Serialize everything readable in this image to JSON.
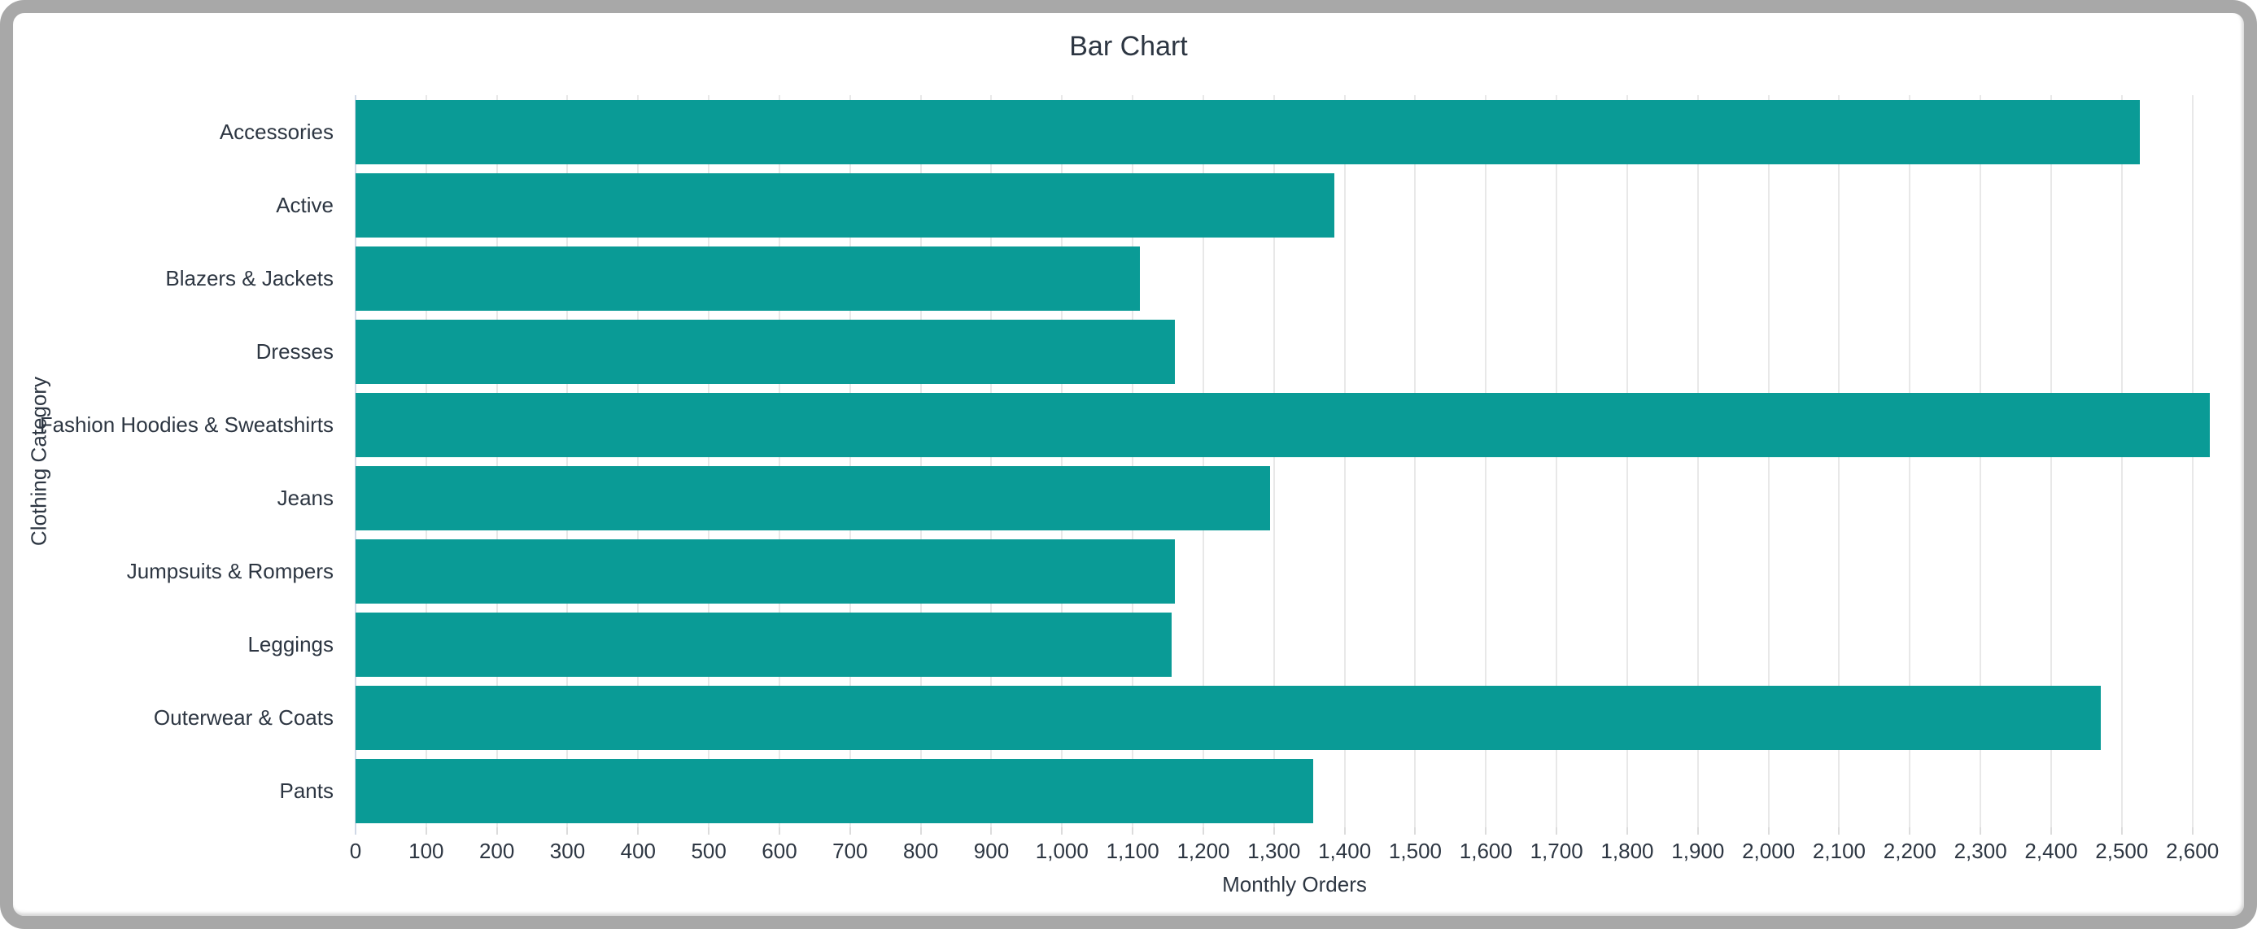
{
  "window": {
    "border_color": "#a8a8a8"
  },
  "chart_data": {
    "type": "bar",
    "orientation": "horizontal",
    "title": "Bar Chart",
    "xlabel": "Monthly Orders",
    "ylabel": "Clothing Category",
    "categories": [
      "Accessories",
      "Active",
      "Blazers & Jackets",
      "Dresses",
      "Fashion Hoodies & Sweatshirts",
      "Jeans",
      "Jumpsuits & Rompers",
      "Leggings",
      "Outerwear & Coats",
      "Pants"
    ],
    "values": [
      2525,
      1385,
      1110,
      1160,
      2625,
      1295,
      1160,
      1155,
      2470,
      1355
    ],
    "xlim": [
      0,
      2658
    ],
    "xtick_labels": [
      "0",
      "100",
      "200",
      "300",
      "400",
      "500",
      "600",
      "700",
      "800",
      "900",
      "1,000",
      "1,100",
      "1,200",
      "1,300",
      "1,400",
      "1,500",
      "1,600",
      "1,700",
      "1,800",
      "1,900",
      "2,000",
      "2,100",
      "2,200",
      "2,300",
      "2,400",
      "2,500",
      "2,600"
    ],
    "grid": true,
    "legend": false,
    "bar_color": "#0a9b96",
    "gridline_color": "#e8e8e8",
    "zeroline_color": "#cfd8e6",
    "text_color": "#2d3642"
  }
}
